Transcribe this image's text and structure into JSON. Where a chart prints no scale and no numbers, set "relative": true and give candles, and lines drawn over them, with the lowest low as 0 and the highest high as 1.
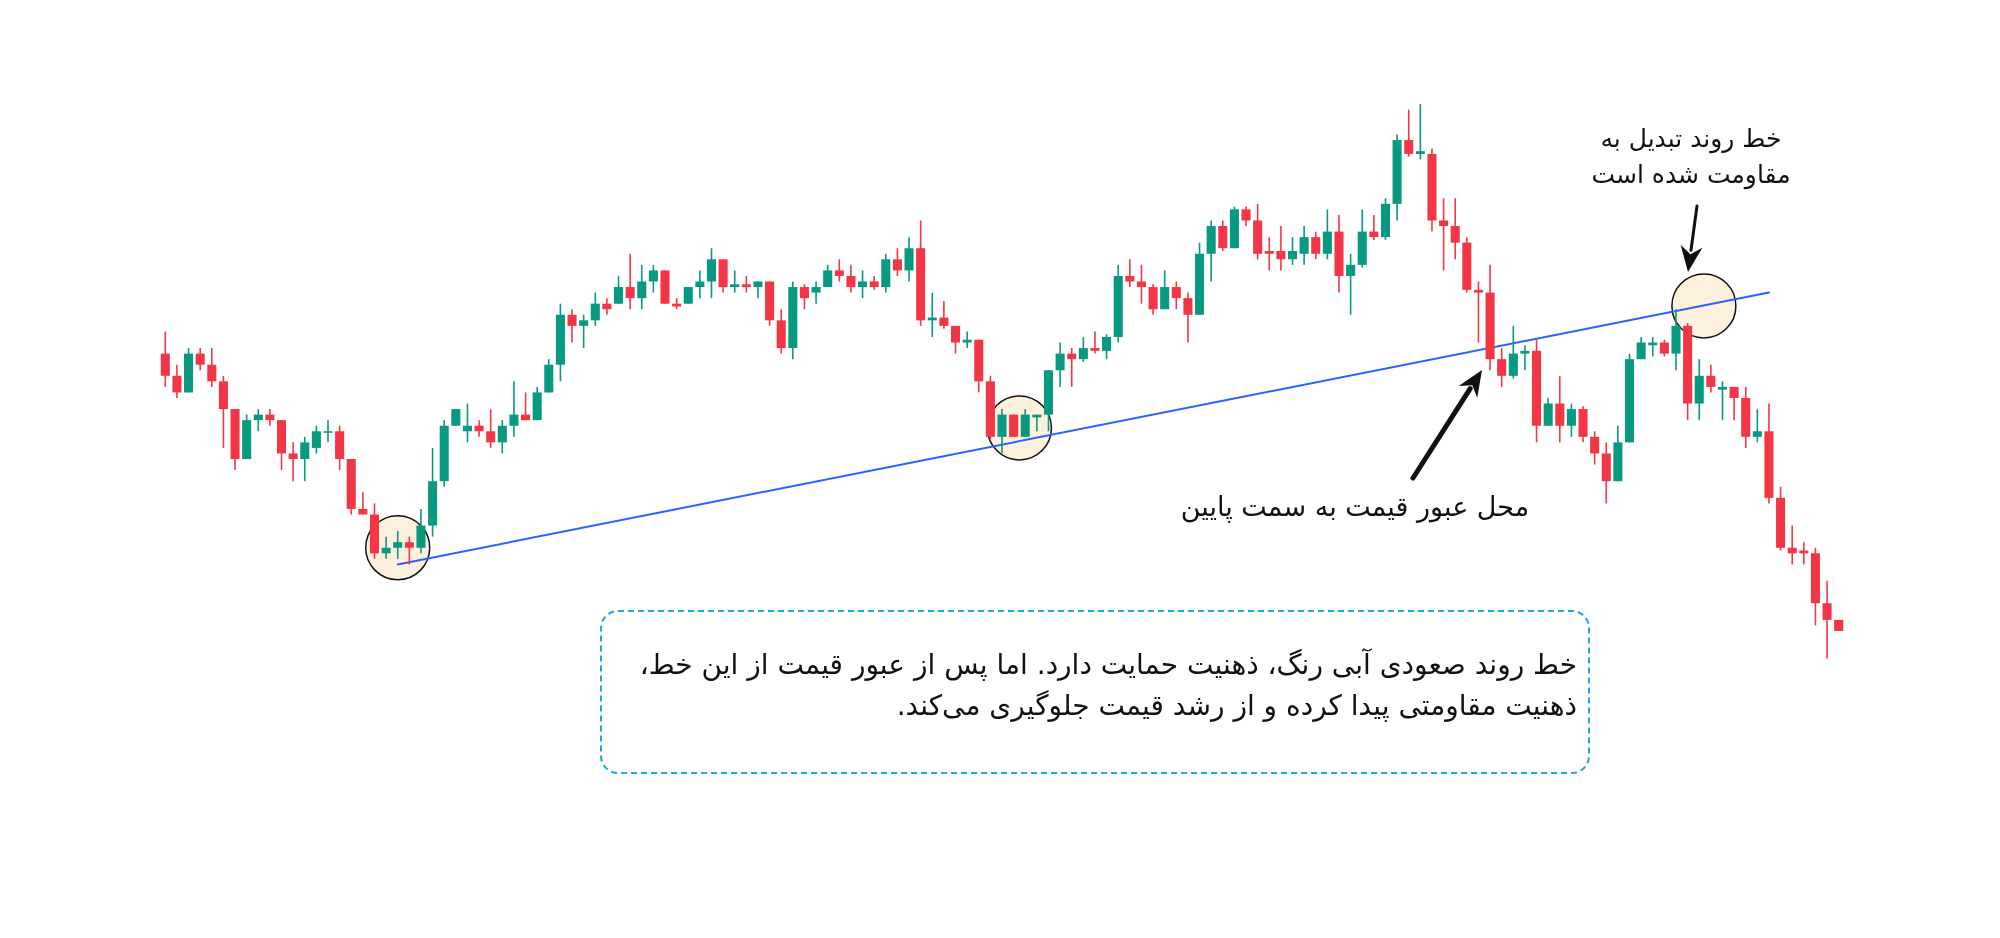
{
  "chart_data": {
    "type": "candlestick",
    "relative": true,
    "categories": [
      null,
      null,
      null,
      null,
      null,
      null,
      null,
      null,
      null,
      null,
      null,
      null,
      null,
      null,
      null,
      null,
      null,
      null,
      null,
      null,
      null,
      null,
      null,
      null,
      null,
      null,
      null,
      null,
      null,
      null,
      null,
      null,
      null,
      null,
      null,
      null,
      null,
      null,
      null,
      null,
      null,
      null,
      null,
      null,
      null,
      null,
      null,
      null,
      null,
      null,
      null,
      null,
      null,
      null,
      null,
      null,
      null,
      null,
      null,
      null,
      null,
      null,
      null,
      null,
      null,
      null,
      null,
      null,
      null,
      null,
      null,
      null,
      null,
      null,
      null,
      null,
      null,
      null,
      null,
      null,
      null,
      null,
      null,
      null,
      null,
      null,
      null,
      null,
      null,
      null,
      null,
      null,
      null,
      null,
      null,
      null,
      null,
      null,
      null,
      null,
      null,
      null,
      null,
      null,
      null,
      null,
      null,
      null,
      null,
      null,
      null,
      null,
      null,
      null,
      null,
      null,
      null,
      null,
      null,
      null,
      null,
      null,
      null,
      null,
      null,
      null,
      null,
      null,
      null,
      null,
      null,
      null,
      null,
      null,
      null,
      null,
      null,
      null,
      null,
      null,
      null,
      null,
      null,
      null,
      null
    ],
    "ohlc": [
      [
        0.55,
        0.59,
        0.49,
        0.51
      ],
      [
        0.51,
        0.53,
        0.47,
        0.48
      ],
      [
        0.48,
        0.56,
        0.48,
        0.55
      ],
      [
        0.55,
        0.56,
        0.52,
        0.53
      ],
      [
        0.53,
        0.56,
        0.49,
        0.5
      ],
      [
        0.5,
        0.51,
        0.38,
        0.45
      ],
      [
        0.45,
        0.45,
        0.34,
        0.36
      ],
      [
        0.36,
        0.44,
        0.36,
        0.43
      ],
      [
        0.43,
        0.45,
        0.41,
        0.44
      ],
      [
        0.44,
        0.45,
        0.42,
        0.43
      ],
      [
        0.43,
        0.43,
        0.34,
        0.37
      ],
      [
        0.37,
        0.39,
        0.32,
        0.36
      ],
      [
        0.36,
        0.4,
        0.32,
        0.39
      ],
      [
        0.38,
        0.42,
        0.37,
        0.41
      ],
      [
        0.41,
        0.43,
        0.39,
        0.41
      ],
      [
        0.41,
        0.42,
        0.34,
        0.36
      ],
      [
        0.36,
        0.36,
        0.26,
        0.27
      ],
      [
        0.27,
        0.3,
        0.26,
        0.26
      ],
      [
        0.26,
        0.28,
        0.18,
        0.19
      ],
      [
        0.19,
        0.22,
        0.18,
        0.2
      ],
      [
        0.2,
        0.23,
        0.18,
        0.21
      ],
      [
        0.21,
        0.22,
        0.17,
        0.2
      ],
      [
        0.2,
        0.27,
        0.19,
        0.24
      ],
      [
        0.24,
        0.38,
        0.22,
        0.32
      ],
      [
        0.32,
        0.43,
        0.31,
        0.42
      ],
      [
        0.42,
        0.45,
        0.42,
        0.45
      ],
      [
        0.41,
        0.46,
        0.39,
        0.42
      ],
      [
        0.42,
        0.43,
        0.4,
        0.41
      ],
      [
        0.41,
        0.45,
        0.38,
        0.39
      ],
      [
        0.39,
        0.43,
        0.37,
        0.42
      ],
      [
        0.42,
        0.5,
        0.4,
        0.44
      ],
      [
        0.44,
        0.48,
        0.43,
        0.43
      ],
      [
        0.43,
        0.49,
        0.43,
        0.48
      ],
      [
        0.48,
        0.54,
        0.48,
        0.53
      ],
      [
        0.53,
        0.64,
        0.5,
        0.62
      ],
      [
        0.62,
        0.63,
        0.57,
        0.6
      ],
      [
        0.6,
        0.62,
        0.56,
        0.61
      ],
      [
        0.61,
        0.66,
        0.6,
        0.64
      ],
      [
        0.64,
        0.65,
        0.62,
        0.63
      ],
      [
        0.64,
        0.69,
        0.64,
        0.67
      ],
      [
        0.67,
        0.73,
        0.63,
        0.65
      ],
      [
        0.65,
        0.71,
        0.63,
        0.68
      ],
      [
        0.68,
        0.71,
        0.66,
        0.7
      ],
      [
        0.7,
        0.7,
        0.64,
        0.64
      ],
      [
        0.64,
        0.65,
        0.63,
        0.635
      ],
      [
        0.64,
        0.67,
        0.64,
        0.67
      ],
      [
        0.67,
        0.7,
        0.65,
        0.68
      ],
      [
        0.68,
        0.74,
        0.65,
        0.72
      ],
      [
        0.72,
        0.72,
        0.66,
        0.67
      ],
      [
        0.67,
        0.7,
        0.66,
        0.675
      ],
      [
        0.675,
        0.69,
        0.66,
        0.67
      ],
      [
        0.67,
        0.68,
        0.65,
        0.68
      ],
      [
        0.68,
        0.68,
        0.6,
        0.61
      ],
      [
        0.61,
        0.63,
        0.55,
        0.56
      ],
      [
        0.56,
        0.68,
        0.54,
        0.67
      ],
      [
        0.67,
        0.675,
        0.63,
        0.65
      ],
      [
        0.66,
        0.68,
        0.64,
        0.67
      ],
      [
        0.67,
        0.71,
        0.67,
        0.7
      ],
      [
        0.7,
        0.72,
        0.68,
        0.69
      ],
      [
        0.69,
        0.71,
        0.66,
        0.67
      ],
      [
        0.67,
        0.7,
        0.65,
        0.68
      ],
      [
        0.68,
        0.69,
        0.665,
        0.67
      ],
      [
        0.67,
        0.73,
        0.66,
        0.72
      ],
      [
        0.72,
        0.74,
        0.69,
        0.7
      ],
      [
        0.7,
        0.76,
        0.68,
        0.74
      ],
      [
        0.74,
        0.79,
        0.6,
        0.61
      ],
      [
        0.61,
        0.66,
        0.58,
        0.615
      ],
      [
        0.615,
        0.645,
        0.595,
        0.6
      ],
      [
        0.6,
        0.6,
        0.55,
        0.57
      ],
      [
        0.57,
        0.59,
        0.56,
        0.575
      ],
      [
        0.575,
        0.575,
        0.48,
        0.5
      ],
      [
        0.5,
        0.51,
        0.395,
        0.4
      ],
      [
        0.4,
        0.45,
        0.37,
        0.44
      ],
      [
        0.44,
        0.44,
        0.4,
        0.4
      ],
      [
        0.4,
        0.45,
        0.4,
        0.44
      ],
      [
        0.435,
        0.44,
        0.41,
        0.44
      ],
      [
        0.44,
        0.52,
        0.41,
        0.52
      ],
      [
        0.52,
        0.57,
        0.49,
        0.55
      ],
      [
        0.55,
        0.56,
        0.49,
        0.54
      ],
      [
        0.54,
        0.58,
        0.535,
        0.56
      ],
      [
        0.56,
        0.59,
        0.55,
        0.555
      ],
      [
        0.555,
        0.585,
        0.54,
        0.58
      ],
      [
        0.58,
        0.71,
        0.57,
        0.69
      ],
      [
        0.69,
        0.72,
        0.67,
        0.68
      ],
      [
        0.68,
        0.71,
        0.64,
        0.67
      ],
      [
        0.67,
        0.675,
        0.62,
        0.63
      ],
      [
        0.63,
        0.7,
        0.63,
        0.67
      ],
      [
        0.67,
        0.68,
        0.63,
        0.65
      ],
      [
        0.65,
        0.66,
        0.57,
        0.62
      ],
      [
        0.62,
        0.75,
        0.62,
        0.73
      ],
      [
        0.73,
        0.79,
        0.68,
        0.78
      ],
      [
        0.78,
        0.79,
        0.735,
        0.74
      ],
      [
        0.74,
        0.815,
        0.74,
        0.81
      ],
      [
        0.81,
        0.815,
        0.78,
        0.79
      ],
      [
        0.79,
        0.82,
        0.72,
        0.73
      ],
      [
        0.735,
        0.76,
        0.7,
        0.73
      ],
      [
        0.735,
        0.78,
        0.7,
        0.72
      ],
      [
        0.72,
        0.76,
        0.71,
        0.735
      ],
      [
        0.73,
        0.78,
        0.71,
        0.76
      ],
      [
        0.76,
        0.77,
        0.72,
        0.73
      ],
      [
        0.73,
        0.81,
        0.72,
        0.77
      ],
      [
        0.77,
        0.8,
        0.66,
        0.69
      ],
      [
        0.69,
        0.73,
        0.62,
        0.71
      ],
      [
        0.71,
        0.81,
        0.705,
        0.77
      ],
      [
        0.77,
        0.8,
        0.755,
        0.76
      ],
      [
        0.76,
        0.83,
        0.755,
        0.82
      ],
      [
        0.82,
        0.945,
        0.79,
        0.935
      ],
      [
        0.935,
        0.99,
        0.905,
        0.91
      ],
      [
        0.91,
        1.0,
        0.9,
        0.915
      ],
      [
        0.91,
        0.92,
        0.77,
        0.79
      ],
      [
        0.79,
        0.83,
        0.7,
        0.78
      ],
      [
        0.78,
        0.83,
        0.72,
        0.75
      ],
      [
        0.75,
        0.76,
        0.66,
        0.665
      ],
      [
        0.665,
        0.68,
        0.57,
        0.66
      ],
      [
        0.66,
        0.71,
        0.52,
        0.54
      ],
      [
        0.54,
        0.56,
        0.49,
        0.51
      ],
      [
        0.51,
        0.6,
        0.505,
        0.55
      ],
      [
        0.55,
        0.565,
        0.52,
        0.555
      ],
      [
        0.555,
        0.575,
        0.39,
        0.42
      ],
      [
        0.42,
        0.47,
        0.42,
        0.46
      ],
      [
        0.46,
        0.51,
        0.39,
        0.42
      ],
      [
        0.42,
        0.46,
        0.4,
        0.45
      ],
      [
        0.45,
        0.455,
        0.39,
        0.4
      ],
      [
        0.4,
        0.41,
        0.35,
        0.37
      ],
      [
        0.37,
        0.39,
        0.28,
        0.32
      ],
      [
        0.32,
        0.42,
        0.32,
        0.39
      ],
      [
        0.39,
        0.55,
        0.39,
        0.54
      ],
      [
        0.54,
        0.58,
        0.54,
        0.57
      ],
      [
        0.565,
        0.58,
        0.545,
        0.57
      ],
      [
        0.57,
        0.575,
        0.545,
        0.55
      ],
      [
        0.55,
        0.63,
        0.52,
        0.6
      ],
      [
        0.6,
        0.605,
        0.43,
        0.46
      ],
      [
        0.46,
        0.54,
        0.43,
        0.51
      ],
      [
        0.51,
        0.53,
        0.48,
        0.49
      ],
      [
        0.485,
        0.5,
        0.43,
        0.49
      ],
      [
        0.49,
        0.49,
        0.43,
        0.47
      ],
      [
        0.47,
        0.49,
        0.38,
        0.4
      ],
      [
        0.4,
        0.45,
        0.39,
        0.41
      ],
      [
        0.41,
        0.46,
        0.28,
        0.29
      ],
      [
        0.29,
        0.31,
        0.195,
        0.2
      ],
      [
        0.2,
        0.24,
        0.17,
        0.19
      ],
      [
        0.195,
        0.21,
        0.17,
        0.19
      ],
      [
        0.19,
        0.2,
        0.06,
        0.1
      ],
      [
        0.1,
        0.14,
        0,
        0.07
      ],
      [
        0.07,
        0.07,
        0.05,
        0.05
      ]
    ],
    "colors": [
      "#f23645",
      "#f23645",
      "#089981",
      "#f23645",
      "#f23645",
      "#f23645",
      "#f23645",
      "#089981",
      "#089981",
      "#f23645",
      "#f23645",
      "#f23645",
      "#089981",
      "#089981",
      "#089981",
      "#f23645",
      "#f23645",
      "#f23645",
      "#f23645",
      "#089981",
      "#089981",
      "#f23645",
      "#089981",
      "#089981",
      "#089981",
      "#089981",
      "#089981",
      "#f23645",
      "#f23645",
      "#089981",
      "#089981",
      "#f23645",
      "#089981",
      "#089981",
      "#089981",
      "#f23645",
      "#089981",
      "#089981",
      "#f23645",
      "#089981",
      "#f23645",
      "#089981",
      "#089981",
      "#f23645",
      "#f23645",
      "#089981",
      "#089981",
      "#089981",
      "#f23645",
      "#089981",
      "#f23645",
      "#089981",
      "#f23645",
      "#f23645",
      "#089981",
      "#f23645",
      "#089981",
      "#089981",
      "#f23645",
      "#f23645",
      "#089981",
      "#f23645",
      "#089981",
      "#f23645",
      "#089981",
      "#f23645",
      "#089981",
      "#f23645",
      "#f23645",
      "#089981",
      "#f23645",
      "#f23645",
      "#089981",
      "#f23645",
      "#089981",
      "#089981",
      "#089981",
      "#089981",
      "#f23645",
      "#089981",
      "#f23645",
      "#089981",
      "#089981",
      "#f23645",
      "#f23645",
      "#f23645",
      "#089981",
      "#f23645",
      "#f23645",
      "#089981",
      "#089981",
      "#f23645",
      "#089981",
      "#f23645",
      "#f23645",
      "#f23645",
      "#f23645",
      "#089981",
      "#089981",
      "#f23645",
      "#089981",
      "#f23645",
      "#089981",
      "#089981",
      "#f23645",
      "#089981",
      "#089981",
      "#f23645",
      "#089981",
      "#f23645",
      "#f23645",
      "#f23645",
      "#f23645",
      "#f23645",
      "#f23645",
      "#f23645",
      "#089981",
      "#089981",
      "#f23645",
      "#089981",
      "#f23645",
      "#089981",
      "#f23645",
      "#f23645",
      "#f23645",
      "#089981",
      "#089981",
      "#089981",
      "#089981",
      "#f23645",
      "#089981",
      "#f23645",
      "#089981",
      "#f23645",
      "#089981",
      "#f23645",
      "#f23645",
      "#089981",
      "#f23645",
      "#f23645",
      "#f23645",
      "#f23645",
      "#f23645",
      "#f23645",
      "#f23645"
    ],
    "series": [
      {
        "type": "line",
        "color": "#2962ff",
        "values": [
          null,
          null,
          null,
          null,
          null,
          null,
          null,
          null,
          null,
          null,
          null,
          null,
          null,
          null,
          null,
          null,
          null,
          null,
          null,
          null,
          0.17,
          null,
          null,
          null,
          null,
          null,
          null,
          null,
          null,
          null,
          null,
          null,
          null,
          null,
          null,
          null,
          null,
          null,
          null,
          null,
          null,
          null,
          null,
          null,
          null,
          null,
          null,
          null,
          null,
          null,
          null,
          null,
          null,
          null,
          null,
          null,
          null,
          null,
          null,
          null,
          null,
          null,
          null,
          null,
          null,
          null,
          null,
          null,
          null,
          null,
          null,
          null,
          null,
          null,
          null,
          null,
          null,
          null,
          null,
          null,
          null,
          null,
          null,
          null,
          null,
          null,
          null,
          null,
          null,
          null,
          null,
          null,
          null,
          null,
          null,
          null,
          null,
          null,
          null,
          null,
          null,
          null,
          null,
          null,
          null,
          null,
          null,
          null,
          null,
          null,
          null,
          null,
          null,
          null,
          null,
          null,
          null,
          null,
          null,
          null,
          null,
          null,
          null,
          null,
          null,
          null,
          null,
          null,
          null,
          null,
          null,
          null,
          null,
          null,
          null,
          null,
          null,
          null,
          0.66,
          null,
          null,
          null,
          null,
          null,
          null
        ]
      }
    ],
    "annotations": [
      "محل عبور قیمت به سمت پایین",
      "خط روند تبدیل به\nمقاومت شده است",
      "خط روند صعودی آبی رنگ، ذهنیت حمایت دارد. اما پس از عبور قیمت از این خط، ذهنیت مقاومتی پیدا کرده و از رشد قیمت جلوگیری می‌کند."
    ]
  }
}
